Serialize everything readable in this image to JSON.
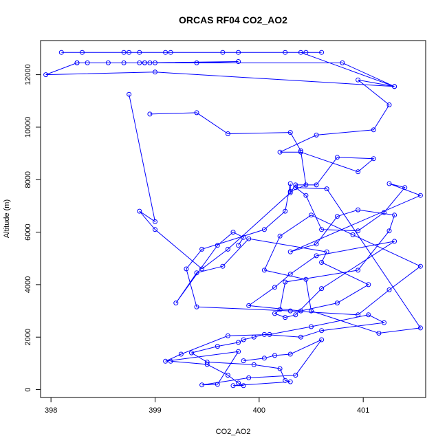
{
  "chart_data": {
    "type": "line",
    "title": "ORCAS RF04 CO2_AO2",
    "xlabel": "CO2_AO2",
    "ylabel": "Altitude (m)",
    "xlim": [
      397.9,
      401.6
    ],
    "ylim": [
      -300,
      13300
    ],
    "xticks": [
      398,
      399,
      400,
      401
    ],
    "yticks": [
      0,
      2000,
      4000,
      6000,
      8000,
      10000,
      12000
    ],
    "grid": false,
    "legend": "none",
    "color": "#0000ff",
    "series": [
      {
        "x": [
          399.1,
          398.75,
          398.3,
          398.1,
          398.7,
          398.85,
          399.15,
          399.65,
          399.8,
          400.25,
          400.45,
          400.6,
          400.4,
          401.3,
          400.8,
          398.85,
          398.35,
          398.25,
          398.55,
          398.7,
          398.9,
          398.95,
          399.0,
          399.4,
          399.8,
          398.9,
          398.25,
          397.95,
          399.0,
          401.3,
          400.95,
          401.25,
          401.1,
          400.55,
          400.2,
          400.4,
          400.95,
          401.1,
          400.75,
          400.55,
          400.35,
          400.3,
          399.7,
          399.45,
          399.0,
          398.85,
          399.0,
          398.75
        ],
        "y": [
          12850,
          12850,
          12850,
          12850,
          12850,
          12850,
          12850,
          12850,
          12850,
          12850,
          12850,
          12850,
          12850,
          11550,
          12450,
          12450,
          12450,
          12450,
          12450,
          12450,
          12450,
          12450,
          12450,
          12450,
          12500,
          12450,
          12450,
          12000,
          12100,
          11550,
          11800,
          10850,
          9900,
          9700,
          9050,
          9050,
          8300,
          8800,
          8850,
          7800,
          7800,
          7500,
          5350,
          4600,
          6100,
          6800,
          6400,
          11250
        ]
      },
      {
        "x": [
          398.95,
          399.4,
          399.7,
          400.3,
          400.4,
          400.45,
          400.3,
          400.3,
          400.25,
          400.05,
          399.45,
          399.3,
          399.4,
          400.3,
          400.95,
          401.25,
          401.55,
          400.9,
          400.5,
          400.2,
          400.05,
          400.45,
          400.5,
          401.15,
          401.55,
          400.65,
          400.35,
          400.45,
          400.6,
          400.95,
          401.2,
          401.4,
          401.25,
          401.55,
          400.3,
          400.55,
          400.75,
          400.95,
          401.3,
          401.25,
          400.95,
          400.25,
          400.2,
          400.15,
          400.25,
          400.35,
          400.6,
          401.3,
          400.55,
          400.3,
          400.15,
          399.9,
          400.4,
          400.75,
          401.05,
          400.6,
          400.65,
          399.9,
          399.65,
          399.4,
          399.2,
          399.6,
          399.75,
          399.85,
          399.8
        ],
        "y": [
          10500,
          10550,
          9750,
          9800,
          9100,
          7800,
          7550,
          7850,
          6800,
          6100,
          5350,
          4600,
          3150,
          3000,
          2850,
          3800,
          4700,
          5900,
          6650,
          5850,
          4550,
          4200,
          3000,
          2150,
          2350,
          7650,
          7700,
          7400,
          6100,
          6050,
          6750,
          7700,
          7850,
          7400,
          5250,
          5550,
          6600,
          6850,
          6650,
          6050,
          4550,
          4100,
          3050,
          2900,
          2750,
          2850,
          3850,
          5650,
          5100,
          4400,
          3900,
          3200,
          3000,
          3300,
          4000,
          4850,
          5250,
          5750,
          4700,
          4450,
          3300,
          5500,
          6000,
          5800,
          5500
        ]
      },
      {
        "x": [
          399.15,
          399.5,
          399.7,
          399.8,
          399.85,
          399.75,
          400.3,
          400.25,
          400.2,
          399.95,
          399.5,
          399.35,
          399.6,
          399.8,
          399.85,
          399.95,
          400.05,
          400.4,
          400.6,
          401.2,
          401.05,
          400.5,
          400.1,
          399.7,
          399.25,
          399.1,
          399.8,
          399.6,
          399.45,
          399.9,
          400.35,
          400.6,
          400.3,
          400.15,
          400.05,
          399.85
        ],
        "y": [
          1080,
          960,
          550,
          250,
          150,
          150,
          300,
          350,
          800,
          950,
          1050,
          1400,
          1650,
          1800,
          1900,
          2000,
          2100,
          2000,
          2250,
          2550,
          2850,
          2400,
          2100,
          2050,
          1350,
          1080,
          1450,
          200,
          180,
          450,
          550,
          1900,
          1350,
          1300,
          1200,
          1100
        ]
      }
    ]
  }
}
